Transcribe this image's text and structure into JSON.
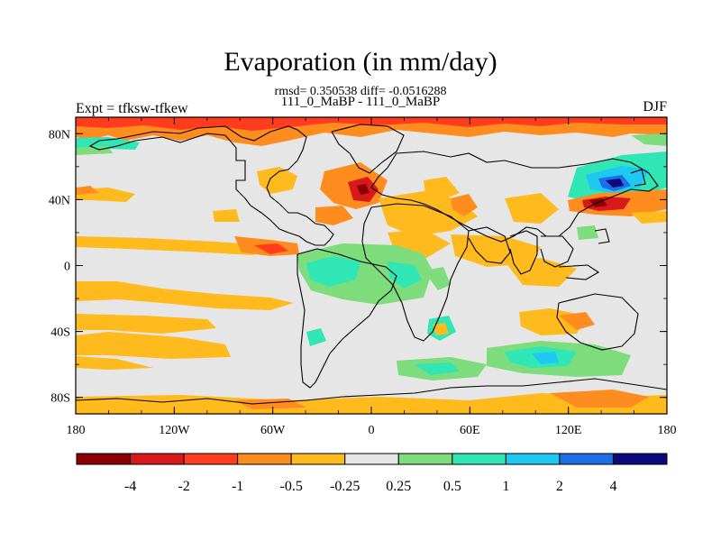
{
  "title": "Evaporation (in mm/day)",
  "stats_line": "rmsd= 0.350538 diff= -0.0516288",
  "run_line": "111_0_MaBP - 111_0_MaBP",
  "left_label": "Expt = tfksw-tfkew",
  "right_label": "DJF",
  "colors": {
    "ocean": "#e6e6e6",
    "c_m4": "#8b0000",
    "c_m2": "#d7191c",
    "c_m1": "#ff3c1e",
    "c_m05": "#ff8c1e",
    "c_m025": "#ffbb1e",
    "c_zero": "#e6e6e6",
    "c_p025": "#7ddd7d",
    "c_p05": "#30e6b4",
    "c_p1": "#1ec8f0",
    "c_p2": "#1e6ee6",
    "c_p4": "#0a0a7a"
  },
  "map": {
    "x_ticks": [
      {
        "lon": -180,
        "label": "180"
      },
      {
        "lon": -120,
        "label": "120W"
      },
      {
        "lon": -60,
        "label": "60W"
      },
      {
        "lon": 0,
        "label": "0"
      },
      {
        "lon": 60,
        "label": "60E"
      },
      {
        "lon": 120,
        "label": "120E"
      },
      {
        "lon": 180,
        "label": "180"
      }
    ],
    "y_ticks": [
      {
        "lat": 80,
        "label": "80N"
      },
      {
        "lat": 40,
        "label": "40N"
      },
      {
        "lat": 0,
        "label": "0"
      },
      {
        "lat": -40,
        "label": "40S"
      },
      {
        "lat": -80,
        "label": "80S"
      }
    ],
    "lon_range": [
      -180,
      180
    ],
    "lat_range": [
      -90,
      90
    ]
  },
  "colorbar": {
    "colors": [
      "#8b0000",
      "#d7191c",
      "#ff3c1e",
      "#ff8c1e",
      "#ffbb1e",
      "#e6e6e6",
      "#7ddd7d",
      "#30e6b4",
      "#1ec8f0",
      "#1e6ee6",
      "#0a0a7a"
    ],
    "labels": [
      "-4",
      "-2",
      "-1",
      "-0.5",
      "-0.25",
      "0.25",
      "0.5",
      "1",
      "2",
      "4"
    ]
  }
}
